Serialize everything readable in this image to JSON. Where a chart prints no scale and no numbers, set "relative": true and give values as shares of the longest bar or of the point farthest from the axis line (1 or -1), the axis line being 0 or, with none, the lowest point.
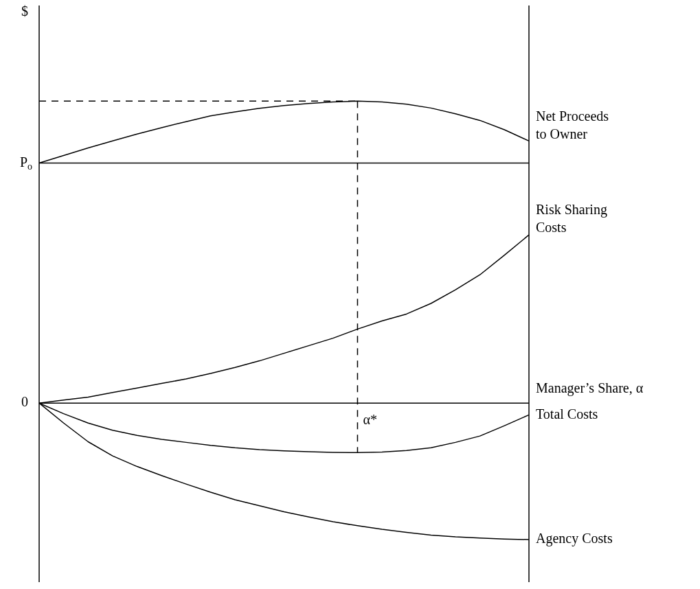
{
  "chart_data": {
    "type": "line",
    "xlabel": "Manager’s Share, α",
    "relative": true,
    "marker": "none",
    "categories": [
      null,
      null,
      null,
      null,
      null,
      null,
      null,
      null,
      null,
      null,
      null,
      null,
      null,
      null,
      null,
      null,
      null,
      null,
      null,
      null,
      null
    ],
    "series": [
      {
        "name": "Net Proceeds to Owner",
        "color": "#000000",
        "values": [
          0.795,
          0.82,
          0.845,
          0.868,
          0.891,
          0.912,
          0.932,
          0.951,
          0.964,
          0.976,
          0.985,
          0.992,
          0.997,
          1,
          0.997,
          0.99,
          0.977,
          0.958,
          0.936,
          0.905,
          0.868
        ]
      },
      {
        "name": "Risk Sharing Costs",
        "color": "#000000",
        "values": [
          0,
          0.01,
          0.02,
          0.035,
          0.05,
          0.065,
          0.08,
          0.098,
          0.118,
          0.14,
          0.165,
          0.19,
          0.215,
          0.245,
          0.272,
          0.295,
          0.33,
          0.375,
          0.425,
          0.49,
          0.557
        ]
      },
      {
        "name": "Total Costs",
        "color": "#000000",
        "values": [
          0,
          -0.035,
          -0.066,
          -0.09,
          -0.107,
          -0.12,
          -0.13,
          -0.14,
          -0.148,
          -0.154,
          -0.158,
          -0.161,
          -0.163,
          -0.164,
          -0.162,
          -0.157,
          -0.148,
          -0.13,
          -0.109,
          -0.075,
          -0.039
        ]
      },
      {
        "name": "Agency Costs",
        "color": "#000000",
        "values": [
          0,
          -0.066,
          -0.128,
          -0.175,
          -0.21,
          -0.24,
          -0.268,
          -0.295,
          -0.32,
          -0.34,
          -0.36,
          -0.377,
          -0.393,
          -0.406,
          -0.418,
          -0.428,
          -0.437,
          -0.443,
          -0.447,
          -0.45,
          -0.452
        ]
      },
      {
        "color": "#000000",
        "line_style": "dashed",
        "values": [
          1,
          1,
          1,
          1,
          1,
          1,
          1,
          1,
          1,
          1,
          1,
          1,
          1,
          1,
          null,
          null,
          null,
          null,
          null,
          null,
          null
        ]
      }
    ],
    "ref_lines": [
      {
        "axis": "y",
        "value": 0.795,
        "label": "P$_{o}$"
      }
    ],
    "annotations": [
      "$",
      "0",
      "α*"
    ]
  }
}
